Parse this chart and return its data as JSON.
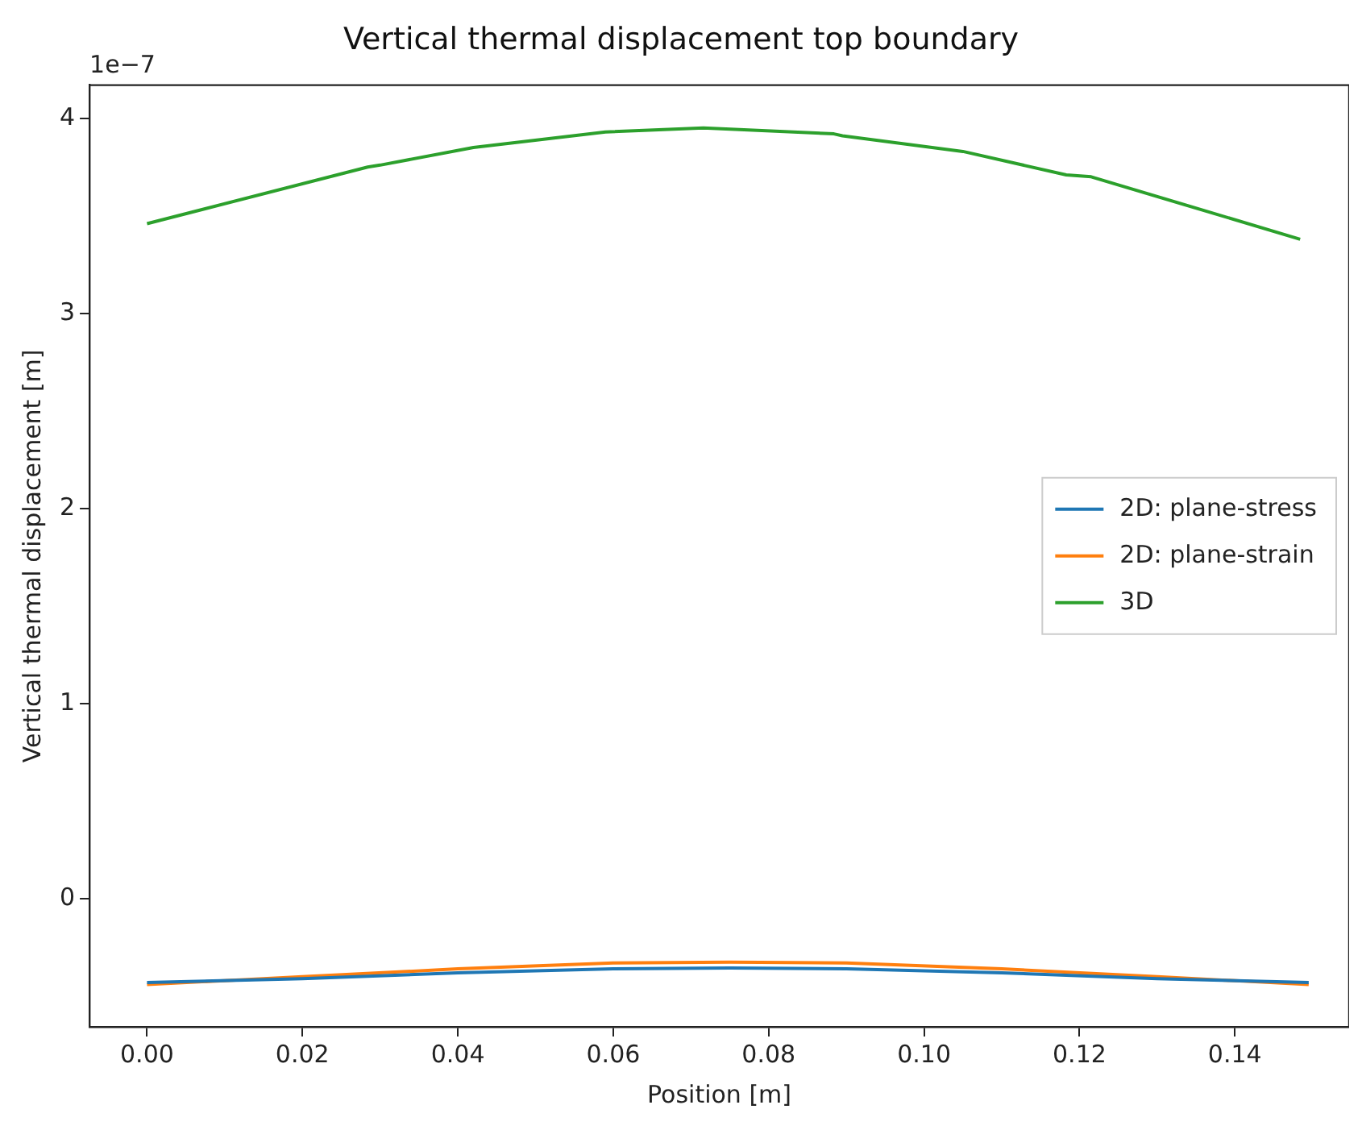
{
  "chart_data": {
    "type": "line",
    "title": "Vertical thermal displacement top boundary",
    "xlabel": "Position [m]",
    "ylabel": "Vertical thermal displacement [m]",
    "annotations": [
      "1e−7"
    ],
    "xlim": [
      -0.0074,
      0.1547
    ],
    "ylim": [
      -0.657,
      4.17
    ],
    "xticks": [
      {
        "value": 0,
        "label": "0.00"
      },
      {
        "value": 0.02,
        "label": "0.02"
      },
      {
        "value": 0.04,
        "label": "0.04"
      },
      {
        "value": 0.06,
        "label": "0.06"
      },
      {
        "value": 0.08,
        "label": "0.08"
      },
      {
        "value": 0.1,
        "label": "0.10"
      },
      {
        "value": 0.12,
        "label": "0.12"
      },
      {
        "value": 0.14,
        "label": "0.14"
      }
    ],
    "yticks": [
      0,
      1,
      2,
      3,
      4
    ],
    "legend": "right",
    "grid": false,
    "marker": "none",
    "line_style": "solid",
    "series": [
      {
        "name": "2D: plane-stress",
        "color": "#1f77b4",
        "x": [
          0,
          0.02,
          0.04,
          0.06,
          0.075,
          0.09,
          0.11,
          0.13,
          0.1495
        ],
        "values": [
          -0.43,
          -0.41,
          -0.38,
          -0.36,
          -0.355,
          -0.36,
          -0.38,
          -0.41,
          -0.43
        ]
      },
      {
        "name": "2D: plane-strain",
        "color": "#ff7f0e",
        "x": [
          0,
          0.02,
          0.04,
          0.06,
          0.075,
          0.09,
          0.11,
          0.13,
          0.1495
        ],
        "values": [
          -0.44,
          -0.4,
          -0.36,
          -0.33,
          -0.325,
          -0.33,
          -0.36,
          -0.4,
          -0.44
        ]
      },
      {
        "name": "3D",
        "color": "#2ca02c",
        "x": [
          0,
          0.0284,
          0.03,
          0.042,
          0.059,
          0.0716,
          0.0884,
          0.0895,
          0.105,
          0.1183,
          0.1215,
          0.1484
        ],
        "values": [
          3.46,
          3.75,
          3.76,
          3.85,
          3.93,
          3.95,
          3.92,
          3.91,
          3.83,
          3.71,
          3.7,
          3.38
        ]
      }
    ]
  }
}
